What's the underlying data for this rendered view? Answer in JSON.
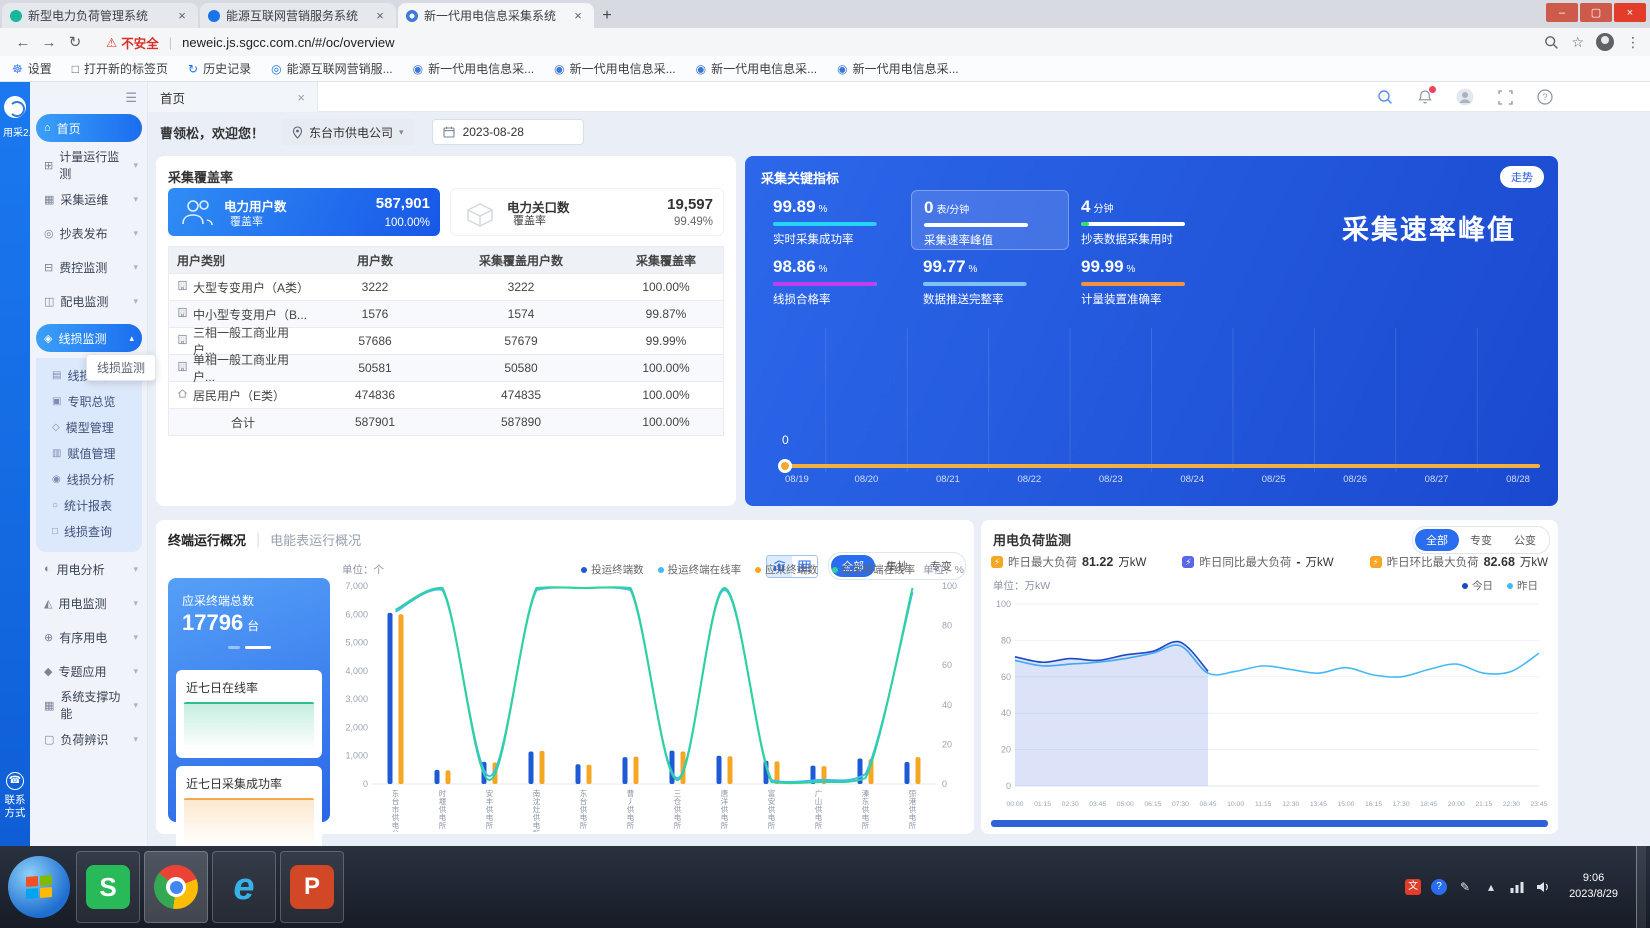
{
  "glyphs": {
    "close": "×",
    "plus": "+",
    "minimize": "–",
    "maximize": "▢",
    "back": "←",
    "forward": "→",
    "refresh": "↻",
    "warning": "⚠",
    "divider": "|",
    "star": "☆",
    "kebab": "⋮",
    "chevron_down": "▾",
    "chevron_up": "▴",
    "menu": "☰",
    "phone": "☎"
  },
  "browser": {
    "tabs": [
      {
        "title": "新型电力负荷管理系统",
        "icon_color": "#18b8a0",
        "active": false
      },
      {
        "title": "能源互联网营销服务系统",
        "icon_color": "#1a73e8",
        "active": false
      },
      {
        "title": "新一代用电信息采集系统",
        "icon_color": "#3a7bd5",
        "active": true
      }
    ],
    "security_label": "不安全",
    "url": "neweic.js.sgcc.com.cn/#/oc/overview",
    "bookmarks": [
      {
        "label": "设置",
        "icon": "☸",
        "color": "#4285f4"
      },
      {
        "label": "打开新的标签页",
        "icon": "□",
        "color": "#5f6368"
      },
      {
        "label": "历史记录",
        "icon": "↻",
        "color": "#1a73e8"
      },
      {
        "label": "能源互联网营销服...",
        "icon": "◎",
        "color": "#1a73e8"
      },
      {
        "label": "新一代用电信息采...",
        "icon": "◉",
        "color": "#3b78d8"
      },
      {
        "label": "新一代用电信息采...",
        "icon": "◉",
        "color": "#3b78d8"
      },
      {
        "label": "新一代用电信息采...",
        "icon": "◉",
        "color": "#3b78d8"
      },
      {
        "label": "新一代用电信息采...",
        "icon": "◉",
        "color": "#3b78d8"
      }
    ]
  },
  "rail": {
    "logo_label": "用采2.0",
    "contact_label": "联系方式"
  },
  "sidebar": {
    "tooltip": "线损监测",
    "items": [
      {
        "label": "首页",
        "icon": "⌂",
        "active": true
      },
      {
        "label": "计量运行监测",
        "icon": "⊞",
        "expandable": true
      },
      {
        "label": "采集运维",
        "icon": "▦",
        "expandable": true
      },
      {
        "label": "抄表发布",
        "icon": "◎",
        "expandable": true
      },
      {
        "label": "费控监测",
        "icon": "⊟",
        "expandable": true
      },
      {
        "label": "配电监测",
        "icon": "◫",
        "expandable": true
      },
      {
        "label": "线损监测",
        "icon": "◈",
        "expandable": true,
        "expanded": true,
        "children": [
          {
            "label": "线损总览",
            "icon": "▤"
          },
          {
            "label": "专职总览",
            "icon": "▣"
          },
          {
            "label": "模型管理",
            "icon": "◇"
          },
          {
            "label": "赋值管理",
            "icon": "▥"
          },
          {
            "label": "线损分析",
            "icon": "◉"
          },
          {
            "label": "统计报表",
            "icon": "○"
          },
          {
            "label": "线损查询",
            "icon": "□"
          }
        ]
      },
      {
        "label": "用电分析",
        "icon": "◐",
        "expandable": true
      },
      {
        "label": "用电监测",
        "icon": "◭",
        "expandable": true
      },
      {
        "label": "有序用电",
        "icon": "⊕",
        "expandable": true
      },
      {
        "label": "专题应用",
        "icon": "◆",
        "expandable": true
      },
      {
        "label": "系统支撑功能",
        "icon": "▦",
        "expandable": true
      },
      {
        "label": "负荷辨识",
        "icon": "▢",
        "expandable": true
      }
    ]
  },
  "header": {
    "page_tab": "首页",
    "greeting": "曹领松，欢迎您！",
    "org": "东台市供电公司",
    "date": "2023-08-28"
  },
  "coverage": {
    "title": "采集覆盖率",
    "cards": [
      {
        "name": "电力用户数",
        "value": "587,901",
        "coverage_label": "覆盖率",
        "coverage": "100.00%",
        "active": true
      },
      {
        "name": "电力关口数",
        "value": "19,597",
        "coverage_label": "覆盖率",
        "coverage": "99.49%",
        "active": false
      }
    ],
    "table": {
      "headers": [
        "用户类别",
        "用户数",
        "采集覆盖用户数",
        "采集覆盖率"
      ],
      "rows": [
        {
          "category": "大型专变用户（A类）",
          "users": "3222",
          "covered": "3222",
          "rate": "100.00%",
          "icon": "building"
        },
        {
          "category": "中小型专变用户（B...",
          "users": "1576",
          "covered": "1574",
          "rate": "99.87%",
          "icon": "building"
        },
        {
          "category": "三相一般工商业用户...",
          "users": "57686",
          "covered": "57679",
          "rate": "99.99%",
          "icon": "building"
        },
        {
          "category": "单相一般工商业用户...",
          "users": "50581",
          "covered": "50580",
          "rate": "100.00%",
          "icon": "building"
        },
        {
          "category": "居民用户（E类）",
          "users": "474836",
          "covered": "474835",
          "rate": "100.00%",
          "icon": "home"
        },
        {
          "category": "合计",
          "users": "587901",
          "covered": "587890",
          "rate": "100.00%",
          "icon": ""
        }
      ]
    }
  },
  "indicators": {
    "title": "采集关键指标",
    "trend_button": "走势",
    "watermark": "采集速率峰值",
    "metrics": [
      {
        "value": "99.89",
        "unit": "%",
        "label": "实时采集成功率",
        "bar_color": "#27d3f5",
        "bar_pct": 99,
        "highlight": false
      },
      {
        "value": "0",
        "unit": "表/分钟",
        "label": "采集速率峰值",
        "bar_color": "#ffffff",
        "bar_pct": 100,
        "highlight": true
      },
      {
        "value": "4",
        "unit": "分钟",
        "label": "抄表数据采集用时",
        "bar_color": "#ffffff",
        "bar_pct": 100,
        "head_color": "#35e06a",
        "highlight": false
      },
      {
        "value": "98.86",
        "unit": "%",
        "label": "线损合格率",
        "bar_color": "#c43cf0",
        "bar_pct": 99,
        "highlight": false
      },
      {
        "value": "99.77",
        "unit": "%",
        "label": "数据推送完整率",
        "bar_color": "#7ec2f5",
        "bar_pct": 99,
        "highlight": false
      },
      {
        "value": "99.99",
        "unit": "%",
        "label": "计量装置准确率",
        "bar_color": "#f5923e",
        "bar_pct": 100,
        "highlight": false
      }
    ]
  },
  "terminal": {
    "tabs": [
      {
        "label": "终端运行概况",
        "active": true
      },
      {
        "label": "电能表运行概况",
        "active": false
      }
    ],
    "filters": [
      {
        "label": "全部",
        "active": true
      },
      {
        "label": "集抄",
        "active": false
      },
      {
        "label": "专变",
        "active": false
      }
    ],
    "summary_card": {
      "title": "应采终端总数",
      "value": "17796",
      "unit": "台"
    },
    "spark_cards": [
      {
        "title": "近七日在线率",
        "color": "#2dbe8c"
      },
      {
        "title": "近七日采集成功率",
        "color": "#f5a94b"
      }
    ]
  },
  "load": {
    "title": "用电负荷监测",
    "filters": [
      {
        "label": "全部",
        "active": true
      },
      {
        "label": "专变",
        "active": false
      },
      {
        "label": "公变",
        "active": false
      }
    ],
    "stats": [
      {
        "label": "昨日最大负荷",
        "value": "81.22",
        "unit": "万kW",
        "icon_color": "#f5a623"
      },
      {
        "label": "昨日同比最大负荷",
        "value": "-",
        "unit": "万kW",
        "icon_color": "#5a68e8"
      },
      {
        "label": "昨日环比最大负荷",
        "value": "82.68",
        "unit": "万kW",
        "icon_color": "#f5a623"
      }
    ],
    "unit_label": "单位：万kW"
  },
  "taskbar": {
    "time": "9:06",
    "date": "2023/8/29"
  },
  "chart_data": [
    {
      "type": "line",
      "name": "collect-rate-trend",
      "title": "采集速率峰值",
      "x": [
        "08/19",
        "08/20",
        "08/21",
        "08/22",
        "08/23",
        "08/24",
        "08/25",
        "08/26",
        "08/27",
        "08/28"
      ],
      "series": [
        {
          "name": "采集速率峰值",
          "color": "#f2b13e",
          "values": [
            0,
            0,
            0,
            0,
            0,
            0,
            0,
            0,
            0,
            0
          ]
        }
      ],
      "marker": {
        "x": "08/19",
        "value": 0
      },
      "ylim": [
        0,
        1
      ],
      "grid": true,
      "legend_position": "none"
    },
    {
      "type": "bar",
      "name": "terminal-overview",
      "unit_left": "单位：个",
      "unit_right": "单位：%",
      "ylim_left": [
        0,
        7000
      ],
      "ylim_right": [
        0,
        100
      ],
      "categories": [
        "东台市供电公司",
        "时堰供电所",
        "安丰供电所",
        "南沈灶供电所",
        "东台供电所",
        "曹丿供电所",
        "三仓供电所",
        "唐洋供电所",
        "富安供电所",
        "广山供电所",
        "溱东供电所",
        "弶港供电所"
      ],
      "series": [
        {
          "name": "投运终端数",
          "kind": "bar",
          "color": "#1f5ad6",
          "values": [
            6050,
            500,
            780,
            1150,
            700,
            950,
            1180,
            1000,
            820,
            650,
            900,
            780
          ]
        },
        {
          "name": "投运终端在线率",
          "kind": "line",
          "axis": "right",
          "color": "#45b9f5",
          "values": [
            87,
            98,
            4,
            98,
            99,
            98,
            3,
            98,
            2,
            2,
            5,
            97
          ]
        },
        {
          "name": "应采终端数",
          "kind": "bar",
          "color": "#f5a623",
          "values": [
            6000,
            480,
            760,
            1170,
            680,
            970,
            1150,
            980,
            800,
            630,
            880,
            950
          ]
        },
        {
          "name": "应采终端在线率",
          "kind": "line",
          "axis": "right",
          "color": "#2dd39a",
          "values": [
            88,
            99,
            2,
            99,
            99,
            99,
            2,
            99,
            1,
            1,
            3,
            99
          ]
        }
      ],
      "legend_position": "top"
    },
    {
      "type": "line",
      "name": "load-monitor",
      "ylim": [
        0,
        100
      ],
      "grid": true,
      "x": [
        "00:00",
        "01:15",
        "02:30",
        "03:45",
        "05:00",
        "06:15",
        "07:30",
        "08:45",
        "10:00",
        "11:15",
        "12:30",
        "13:45",
        "15:00",
        "16:15",
        "17:30",
        "18:45",
        "20:00",
        "21:15",
        "22:30",
        "23:45"
      ],
      "series": [
        {
          "name": "今日",
          "color": "#1d49c8",
          "area": true,
          "values": [
            71,
            68,
            70,
            69,
            72,
            74,
            79,
            63
          ]
        },
        {
          "name": "昨日",
          "color": "#45b9f5",
          "values": [
            69,
            66,
            67,
            68,
            70,
            73,
            77,
            62,
            63,
            66,
            64,
            62,
            65,
            61,
            60,
            64,
            67,
            62,
            63,
            73
          ]
        }
      ],
      "legend_position": "top-right"
    }
  ]
}
